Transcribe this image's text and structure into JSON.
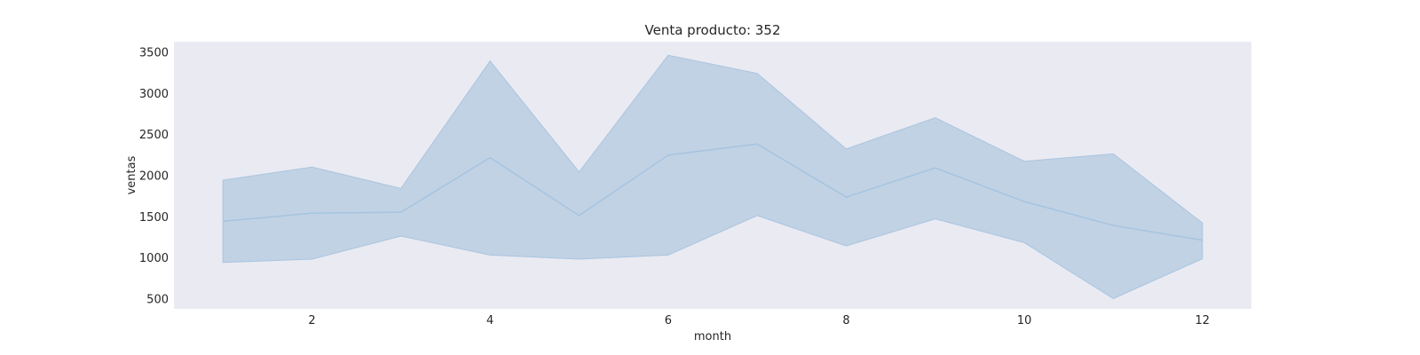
{
  "chart_data": {
    "type": "line",
    "title": "Venta producto: 352",
    "xlabel": "month",
    "ylabel": "ventas",
    "x": [
      1,
      2,
      3,
      4,
      5,
      6,
      7,
      8,
      9,
      10,
      11,
      12
    ],
    "series": [
      {
        "values": [
          1440,
          1540,
          1550,
          2215,
          1510,
          2245,
          2380,
          1735,
          2090,
          1680,
          1390,
          1210
        ],
        "ci_upper": [
          1940,
          2100,
          1840,
          3390,
          2040,
          3460,
          3240,
          2320,
          2700,
          2170,
          2260,
          1420
        ],
        "ci_lower": [
          940,
          980,
          1260,
          1030,
          980,
          1030,
          1510,
          1140,
          1470,
          1180,
          500,
          985
        ]
      }
    ],
    "xticks": [
      2,
      4,
      6,
      8,
      10,
      12
    ],
    "yticks": [
      500,
      1000,
      1500,
      2000,
      2500,
      3000,
      3500
    ],
    "xlim": [
      0.45,
      12.55
    ],
    "ylim": [
      375,
      3625
    ],
    "grid": false,
    "colors": {
      "background": "#eaeaf2",
      "line": "#a6c4e0",
      "band": "#c1d2e4",
      "band_edge": "#a9c5e0",
      "text": "#262626"
    }
  }
}
